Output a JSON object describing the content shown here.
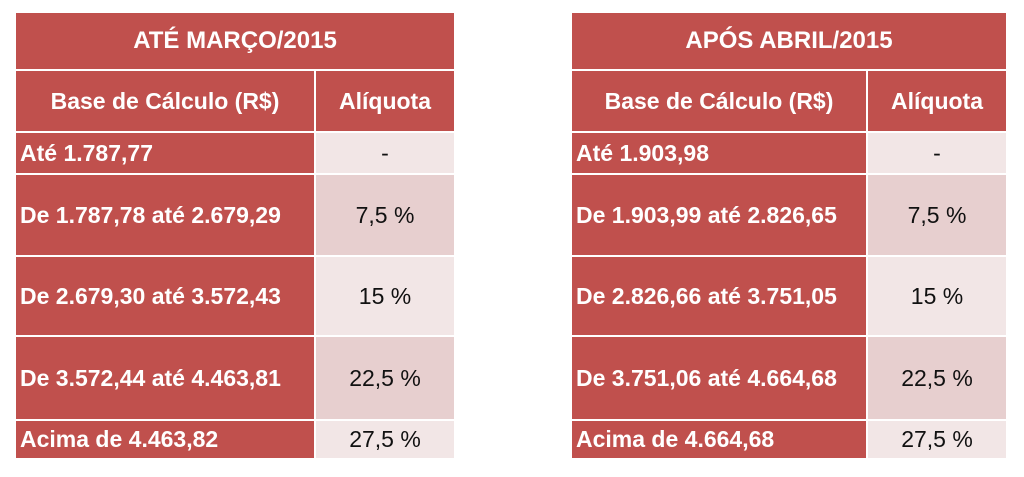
{
  "tables": [
    {
      "title": "ATÉ MARÇO/2015",
      "col_base": "Base de Cálculo (R$)",
      "col_rate": "Alíquota",
      "rows": [
        {
          "base": "Até 1.787,77",
          "rate": "-"
        },
        {
          "base": "De 1.787,78 até 2.679,29",
          "rate": "7,5 %"
        },
        {
          "base": "De 2.679,30 até 3.572,43",
          "rate": "15 %"
        },
        {
          "base": "De 3.572,44 até 4.463,81",
          "rate": "22,5 %"
        },
        {
          "base": "Acima de 4.463,82",
          "rate": "27,5 %"
        }
      ]
    },
    {
      "title": "APÓS ABRIL/2015",
      "col_base": "Base de Cálculo (R$)",
      "col_rate": "Alíquota",
      "rows": [
        {
          "base": "Até 1.903,98",
          "rate": "-"
        },
        {
          "base": "De 1.903,99 até 2.826,65",
          "rate": "7,5 %"
        },
        {
          "base": "De 2.826,66 até 3.751,05",
          "rate": "15 %"
        },
        {
          "base": "De 3.751,06 até 4.664,68",
          "rate": "22,5 %"
        },
        {
          "base": "Acima de 4.664,68",
          "rate": "27,5 %"
        }
      ]
    }
  ],
  "colors": {
    "header_red": "#c0504d",
    "row_light": "#f2e6e6",
    "row_pink": "#e7cfcf"
  }
}
